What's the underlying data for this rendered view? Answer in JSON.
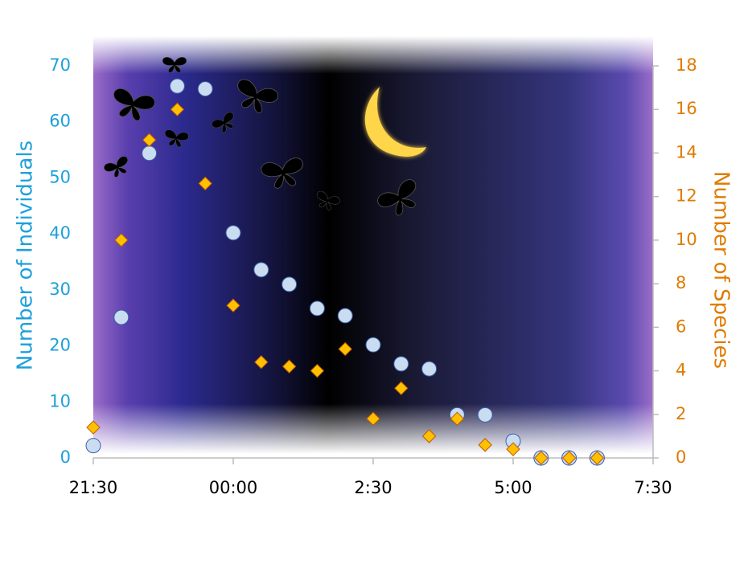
{
  "chart_data": {
    "type": "scatter",
    "ylabel": "Number of Individuals",
    "y2label": "Number of Species",
    "x": [
      21.5,
      22,
      22.5,
      23,
      23.5,
      24,
      24.5,
      25,
      25.5,
      26,
      26.5,
      27,
      27.5,
      28,
      28.5,
      29,
      29.5,
      30,
      30.5
    ],
    "xlim": [
      21.5,
      31.5
    ],
    "xticks": [
      {
        "value": 21.5,
        "label": "21:30"
      },
      {
        "value": 24,
        "label": "00:00"
      },
      {
        "value": 26.5,
        "label": "2:30"
      },
      {
        "value": 29,
        "label": "5:00"
      },
      {
        "value": 31.5,
        "label": "7:30"
      }
    ],
    "ylim": [
      0,
      70
    ],
    "yticks": [
      0,
      10,
      20,
      30,
      40,
      50,
      60,
      70
    ],
    "y2lim": [
      0,
      18
    ],
    "y2ticks": [
      0,
      2,
      4,
      6,
      8,
      10,
      12,
      14,
      16,
      18
    ],
    "series": [
      {
        "marker": "circle",
        "color": "#c9dcf0",
        "axis": "y",
        "values": [
          2.2,
          25.1,
          54.4,
          66.4,
          65.9,
          40.2,
          33.6,
          31.0,
          26.7,
          25.4,
          20.2,
          16.8,
          15.9,
          7.7,
          7.7,
          3.0,
          0,
          0,
          0
        ]
      },
      {
        "marker": "diamond",
        "color": "#ffc000",
        "axis": "y2",
        "values": [
          1.4,
          10.0,
          14.6,
          16.0,
          12.6,
          7.0,
          4.4,
          4.2,
          4.0,
          5.0,
          1.8,
          3.2,
          1.0,
          1.8,
          0.6,
          0.4,
          0,
          0,
          0
        ]
      }
    ]
  }
}
